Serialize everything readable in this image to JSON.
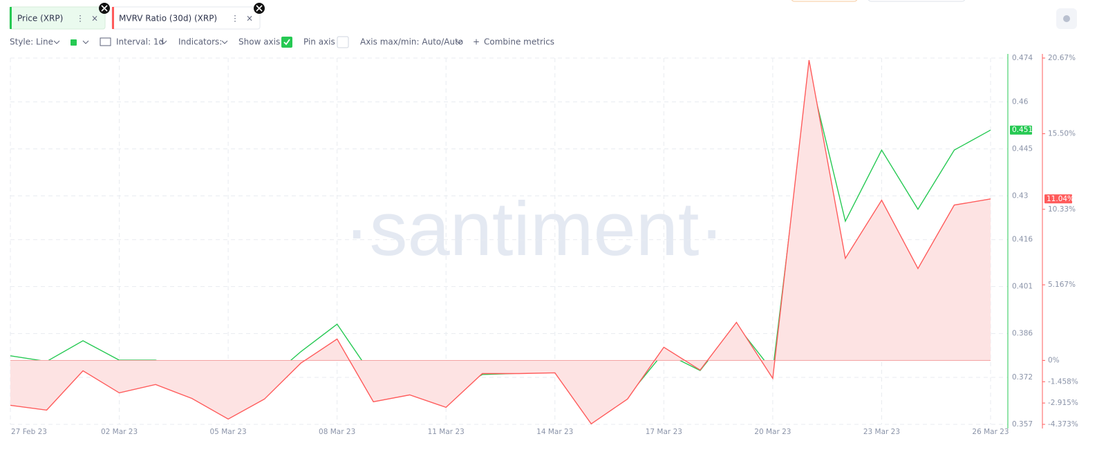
{
  "tabs": [
    "Price (XRP)",
    "MVRV Ratio (30d) (XRP)"
  ],
  "toolbar": {
    "style": "Style: Line",
    "interval": "Interval: 1d",
    "indicators": "Indicators:",
    "show_axis": "Show axis",
    "pin_axis": "Pin axis",
    "axis_range": "Axis max/min: Auto/Auto",
    "combine": "Combine metrics"
  },
  "chart_data": {
    "type": "line",
    "watermark": "·santiment·",
    "categories": [
      "27 Feb 23",
      null,
      null,
      "02 Mar 23",
      null,
      null,
      "05 Mar 23",
      null,
      null,
      "08 Mar 23",
      null,
      null,
      "11 Mar 23",
      null,
      null,
      "14 Mar 23",
      null,
      null,
      "17 Mar 23",
      null,
      null,
      "20 Mar 23",
      null,
      null,
      "23 Mar 23",
      null,
      null,
      "26 Mar 23"
    ],
    "series": [
      {
        "name": "Price (XRP)",
        "color": "#26c953",
        "values": [
          0.3789,
          0.3771,
          0.3837,
          0.3775,
          0.3775,
          0.3736,
          0.3669,
          0.3702,
          0.3802,
          0.389,
          0.372,
          0.3705,
          0.3667,
          0.3729,
          0.3733,
          0.374,
          0.3605,
          0.3658,
          0.38,
          0.3742,
          0.3888,
          0.374,
          0.4698,
          0.4219,
          0.4446,
          0.4257,
          0.4446,
          0.451
        ],
        "value_labels": [
          null,
          null,
          null,
          null,
          null,
          null,
          null,
          null,
          null,
          null,
          null,
          null,
          null,
          null,
          null,
          null,
          null,
          null,
          null,
          null,
          null,
          null,
          null,
          null,
          null,
          null,
          null,
          "0.451"
        ]
      },
      {
        "name": "MVRV Ratio (30d) (XRP)",
        "color": "#ff5b5b",
        "axis": "y2",
        "fill": "#fde3e3",
        "values": [
          -3.07,
          -3.4,
          -0.71,
          -2.22,
          -1.65,
          -2.6,
          -4.01,
          -2.64,
          -0.19,
          1.46,
          -2.83,
          -2.36,
          -3.21,
          -0.9,
          -0.9,
          -0.85,
          -4.34,
          -2.64,
          0.9,
          -0.66,
          2.6,
          -1.23,
          20.53,
          6.98,
          10.95,
          6.28,
          10.62,
          11.04
        ],
        "value_labels": [
          null,
          null,
          null,
          null,
          null,
          null,
          null,
          null,
          null,
          null,
          null,
          null,
          null,
          null,
          null,
          null,
          null,
          null,
          null,
          null,
          null,
          null,
          null,
          null,
          null,
          null,
          null,
          "11.04%"
        ]
      }
    ],
    "ylim": [
      0.357,
      0.474
    ],
    "yticks": [
      0.357,
      0.372,
      0.386,
      0.401,
      0.416,
      0.43,
      0.445,
      0.46,
      0.474
    ],
    "y2lim": [
      -4.373,
      20.67
    ],
    "y2ticks": [
      {
        "value": -4.373,
        "label": "-4.373%"
      },
      {
        "value": -2.915,
        "label": "-2.915%"
      },
      {
        "value": -1.458,
        "label": "-1.458%"
      },
      {
        "value": 0,
        "label": "0%"
      },
      {
        "value": 5.167,
        "label": "5.167%"
      },
      {
        "value": 10.33,
        "label": "10.33%"
      },
      {
        "value": 15.5,
        "label": "15.50%"
      },
      {
        "value": 20.67,
        "label": "20.67%"
      }
    ],
    "grid": true
  }
}
